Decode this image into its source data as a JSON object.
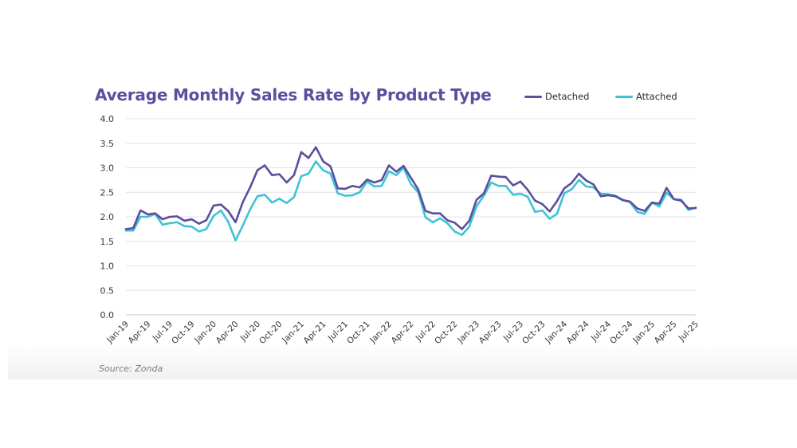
{
  "chart_data": {
    "type": "line",
    "title": "Average Monthly Sales Rate by Product Type",
    "xlabel": "",
    "ylabel": "",
    "ylim": [
      0,
      4.0
    ],
    "y_ticks": [
      "0.0",
      "0.5",
      "1.0",
      "1.5",
      "2.0",
      "2.5",
      "3.0",
      "3.5",
      "4.0"
    ],
    "grid": true,
    "legend_position": "top-right",
    "x_tick_labels": [
      "Jan-19",
      "Apr-19",
      "Jul-19",
      "Oct-19",
      "Jan-20",
      "Apr-20",
      "Jul-20",
      "Oct-20",
      "Jan-21",
      "Apr-21",
      "Jul-21",
      "Oct-21",
      "Jan-22",
      "Apr-22",
      "Jul-22",
      "Oct-22",
      "Jan-23",
      "Apr-23",
      "Jul-23",
      "Oct-23",
      "Jan-24",
      "Apr-24",
      "Jul-24",
      "Oct-24",
      "Jan-25",
      "Apr-25",
      "Jul-25"
    ],
    "months": 79,
    "series": [
      {
        "name": "Detached",
        "color": "#5b4e9e",
        "values": [
          1.75,
          1.77,
          2.13,
          2.05,
          2.07,
          1.95,
          2.0,
          2.01,
          1.92,
          1.95,
          1.86,
          1.93,
          2.23,
          2.25,
          2.12,
          1.89,
          2.3,
          2.6,
          2.95,
          3.05,
          2.85,
          2.87,
          2.7,
          2.85,
          3.32,
          3.2,
          3.42,
          3.13,
          3.03,
          2.58,
          2.57,
          2.63,
          2.6,
          2.76,
          2.7,
          2.75,
          3.05,
          2.92,
          3.04,
          2.8,
          2.56,
          2.12,
          2.07,
          2.07,
          1.93,
          1.88,
          1.75,
          1.92,
          2.35,
          2.48,
          2.84,
          2.82,
          2.81,
          2.64,
          2.72,
          2.55,
          2.33,
          2.26,
          2.11,
          2.32,
          2.58,
          2.69,
          2.88,
          2.74,
          2.66,
          2.42,
          2.44,
          2.42,
          2.34,
          2.31,
          2.17,
          2.12,
          2.29,
          2.27,
          2.59,
          2.36,
          2.33,
          2.17,
          2.18
        ]
      },
      {
        "name": "Attached",
        "color": "#3cc4d6",
        "values": [
          1.72,
          1.72,
          2.0,
          2.0,
          2.06,
          1.84,
          1.87,
          1.89,
          1.81,
          1.8,
          1.7,
          1.75,
          2.02,
          2.13,
          1.9,
          1.52,
          1.82,
          2.15,
          2.42,
          2.45,
          2.29,
          2.37,
          2.28,
          2.4,
          2.83,
          2.88,
          3.13,
          2.95,
          2.88,
          2.48,
          2.43,
          2.44,
          2.5,
          2.72,
          2.62,
          2.63,
          2.93,
          2.85,
          3.0,
          2.67,
          2.5,
          1.99,
          1.89,
          1.97,
          1.87,
          1.7,
          1.63,
          1.8,
          2.22,
          2.43,
          2.7,
          2.63,
          2.63,
          2.45,
          2.47,
          2.41,
          2.1,
          2.13,
          1.96,
          2.06,
          2.48,
          2.56,
          2.75,
          2.62,
          2.6,
          2.47,
          2.46,
          2.43,
          2.35,
          2.3,
          2.1,
          2.06,
          2.29,
          2.21,
          2.49,
          2.36,
          2.35,
          2.14,
          2.19
        ]
      }
    ]
  },
  "source": "Source: Zonda"
}
